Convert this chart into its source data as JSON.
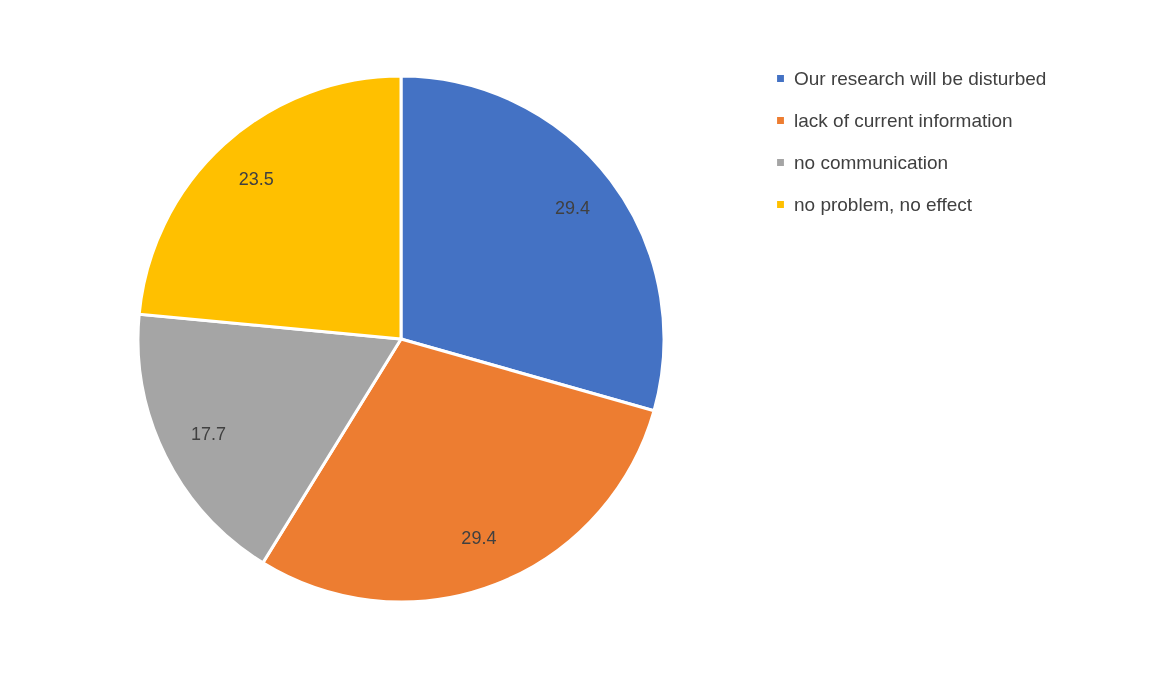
{
  "chart_data": {
    "type": "pie",
    "categories": [
      "Our research will be disturbed",
      "lack of current information",
      "no communication",
      "no problem, no effect"
    ],
    "values": [
      29.4,
      29.4,
      17.7,
      23.5
    ],
    "colors": [
      "#4472c4",
      "#ed7d31",
      "#a5a5a5",
      "#ffc000"
    ],
    "data_labels": true,
    "legend": "right"
  }
}
